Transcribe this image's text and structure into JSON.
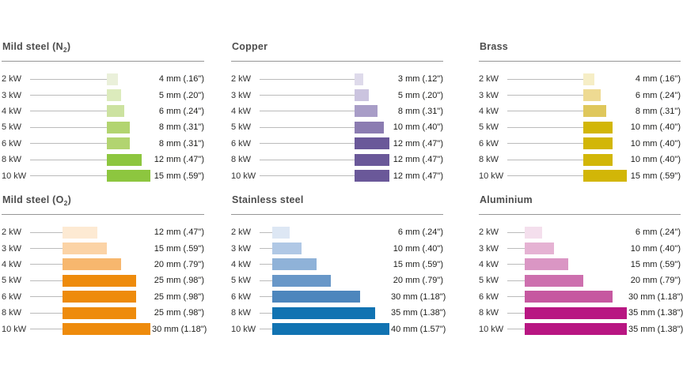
{
  "page": {
    "background": "#ffffff",
    "description_visible_text_only": true
  },
  "style": {
    "title_color": "#4d4d4d",
    "power_label_color": "#323232",
    "value_label_color": "#1d1d1b",
    "divider_color": "#969696",
    "leader_line_color": "#bbbbbb"
  },
  "chart_data": [
    {
      "type": "bar",
      "title": {
        "pre": "Mild steel (N",
        "sub": "2",
        "post": ")"
      },
      "categories": [
        "2 kW",
        "3 kW",
        "4 kW",
        "5 kW",
        "6 kW",
        "8 kW",
        "10 kW"
      ],
      "values_mm": [
        4,
        5,
        6,
        8,
        8,
        12,
        15
      ],
      "value_labels": [
        "4 mm (.16\")",
        "5 mm (.20\")",
        "6 mm (.24\")",
        "8 mm (.31\")",
        "8 mm (.31\")",
        "12 mm (.47\")",
        "15 mm (.59\")"
      ],
      "bar_colors": [
        "#eaf0da",
        "#dcebbc",
        "#cce2a0",
        "#b2d470",
        "#b2d470",
        "#8dc63f",
        "#8dc63f"
      ],
      "xlabel": "",
      "ylabel": "",
      "legend": "none",
      "grid": false
    },
    {
      "type": "bar",
      "title": {
        "pre": "Copper",
        "sub": "",
        "post": ""
      },
      "categories": [
        "2 kW",
        "3 kW",
        "4 kW",
        "5 kW",
        "6 kW",
        "8 kW",
        "10 kW"
      ],
      "values_mm": [
        3,
        5,
        8,
        10,
        12,
        12,
        12
      ],
      "value_labels": [
        "3 mm (.12\")",
        "5 mm (.20\")",
        "8 mm (.31\")",
        "10 mm (.40\")",
        "12 mm (.47\")",
        "12 mm (.47\")",
        "12 mm (.47\")"
      ],
      "bar_colors": [
        "#dedaeb",
        "#cbc4df",
        "#a89dc7",
        "#8b7cb1",
        "#6a5899",
        "#6a5899",
        "#6a5899"
      ],
      "xlabel": "",
      "ylabel": "",
      "legend": "none",
      "grid": false
    },
    {
      "type": "bar",
      "title": {
        "pre": "Brass",
        "sub": "",
        "post": ""
      },
      "categories": [
        "2 kW",
        "3 kW",
        "4 kW",
        "5 kW",
        "6 kW",
        "8 kW",
        "10 kW"
      ],
      "values_mm": [
        4,
        6,
        8,
        10,
        10,
        10,
        15
      ],
      "value_labels": [
        "4 mm (.16\")",
        "6 mm (.24\")",
        "8 mm (.31\")",
        "10 mm (.40\")",
        "10 mm (.40\")",
        "10 mm (.40\")",
        "15 mm (.59\")"
      ],
      "bar_colors": [
        "#f6eec6",
        "#eeda92",
        "#dfc75b",
        "#d2b607",
        "#d2b607",
        "#d2b607",
        "#d2b607"
      ],
      "xlabel": "",
      "ylabel": "",
      "legend": "none",
      "grid": false
    },
    {
      "type": "bar",
      "title": {
        "pre": "Mild steel (O",
        "sub": "2",
        "post": ")"
      },
      "categories": [
        "2 kW",
        "3 kW",
        "4 kW",
        "5 kW",
        "6 kW",
        "8 kW",
        "10 kW"
      ],
      "values_mm": [
        12,
        15,
        20,
        25,
        25,
        25,
        30
      ],
      "value_labels": [
        "12 mm (.47\")",
        "15 mm (.59\")",
        "20 mm (.79\")",
        "25 mm (.98\")",
        "25 mm (.98\")",
        "25 mm (.98\")",
        "30 mm (1.18\")"
      ],
      "bar_colors": [
        "#fdead3",
        "#fbd3a6",
        "#f7b76e",
        "#ee8b0c",
        "#ee8b0c",
        "#ee8b0c",
        "#ee8b0c"
      ],
      "xlabel": "",
      "ylabel": "",
      "legend": "none",
      "grid": false
    },
    {
      "type": "bar",
      "title": {
        "pre": "Stainless steel",
        "sub": "",
        "post": ""
      },
      "categories": [
        "2 kW",
        "3 kW",
        "4 kW",
        "5 kW",
        "6 kW",
        "8 kW",
        "10 kW"
      ],
      "values_mm": [
        6,
        10,
        15,
        20,
        30,
        35,
        40
      ],
      "value_labels": [
        "6 mm (.24\")",
        "10 mm (.40\")",
        "15 mm (.59\")",
        "20 mm (.79\")",
        "30 mm (1.18\")",
        "35 mm (1.38\")",
        "40 mm (1.57\")"
      ],
      "bar_colors": [
        "#dde7f4",
        "#b0c8e5",
        "#8fb2d8",
        "#6897c8",
        "#4d86bd",
        "#1173b2",
        "#1173b2"
      ],
      "xlabel": "",
      "ylabel": "",
      "legend": "none",
      "grid": false
    },
    {
      "type": "bar",
      "title": {
        "pre": "Aluminium",
        "sub": "",
        "post": ""
      },
      "categories": [
        "2 kW",
        "3 kW",
        "4 kW",
        "5 kW",
        "6 kW",
        "8 kW",
        "10 kW"
      ],
      "values_mm": [
        6,
        10,
        15,
        20,
        30,
        35,
        35
      ],
      "value_labels": [
        "6 mm (.24\")",
        "10 mm (.40\")",
        "15 mm (.59\")",
        "20 mm (.79\")",
        "30 mm (1.18\")",
        "35 mm (1.38\")",
        "35 mm (1.38\")"
      ],
      "bar_colors": [
        "#f4dfed",
        "#e5b2d3",
        "#da96c4",
        "#cd6fae",
        "#c658a0",
        "#b81682",
        "#b81682"
      ],
      "xlabel": "",
      "ylabel": "",
      "legend": "none",
      "grid": false
    }
  ]
}
